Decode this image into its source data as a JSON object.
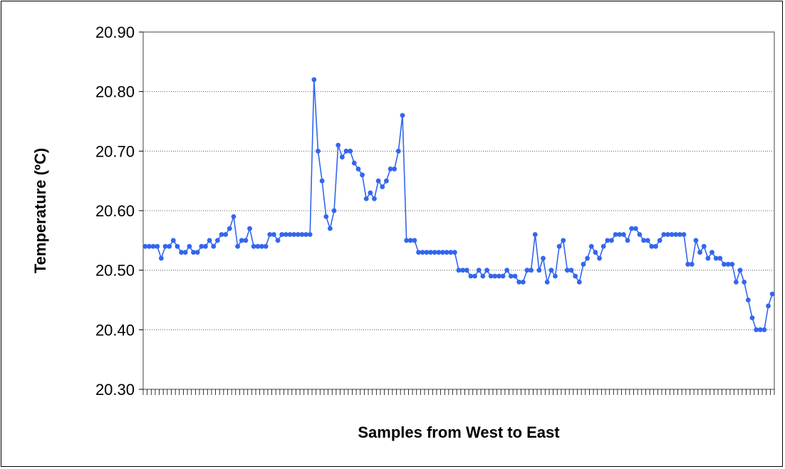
{
  "chart_data": {
    "type": "line",
    "title": "",
    "xlabel": "Samples from West to East",
    "ylabel": "Temperature (ºC)",
    "ylim": [
      20.3,
      20.9
    ],
    "yticks": [
      "20.30",
      "20.40",
      "20.50",
      "20.60",
      "20.70",
      "20.80",
      "20.90"
    ],
    "grid": "horizontal dotted",
    "legend": "none",
    "colors": {
      "series": "#3366ee",
      "grid": "#555555",
      "axis": "#808080"
    },
    "series": [
      {
        "values": [
          20.54,
          20.54,
          20.54,
          20.54,
          20.52,
          20.54,
          20.54,
          20.55,
          20.54,
          20.53,
          20.53,
          20.54,
          20.53,
          20.53,
          20.54,
          20.54,
          20.55,
          20.54,
          20.55,
          20.56,
          20.56,
          20.57,
          20.59,
          20.54,
          20.55,
          20.55,
          20.57,
          20.54,
          20.54,
          20.54,
          20.54,
          20.56,
          20.56,
          20.55,
          20.56,
          20.56,
          20.56,
          20.56,
          20.56,
          20.56,
          20.56,
          20.56,
          20.82,
          20.7,
          20.65,
          20.59,
          20.57,
          20.6,
          20.71,
          20.69,
          20.7,
          20.7,
          20.68,
          20.67,
          20.66,
          20.62,
          20.63,
          20.62,
          20.65,
          20.64,
          20.65,
          20.67,
          20.67,
          20.7,
          20.76,
          20.55,
          20.55,
          20.55,
          20.53,
          20.53,
          20.53,
          20.53,
          20.53,
          20.53,
          20.53,
          20.53,
          20.53,
          20.53,
          20.5,
          20.5,
          20.5,
          20.49,
          20.49,
          20.5,
          20.49,
          20.5,
          20.49,
          20.49,
          20.49,
          20.49,
          20.5,
          20.49,
          20.49,
          20.48,
          20.48,
          20.5,
          20.5,
          20.56,
          20.5,
          20.52,
          20.48,
          20.5,
          20.49,
          20.54,
          20.55,
          20.5,
          20.5,
          20.49,
          20.48,
          20.51,
          20.52,
          20.54,
          20.53,
          20.52,
          20.54,
          20.55,
          20.55,
          20.56,
          20.56,
          20.56,
          20.55,
          20.57,
          20.57,
          20.56,
          20.55,
          20.55,
          20.54,
          20.54,
          20.55,
          20.56,
          20.56,
          20.56,
          20.56,
          20.56,
          20.56,
          20.51,
          20.51,
          20.55,
          20.53,
          20.54,
          20.52,
          20.53,
          20.52,
          20.52,
          20.51,
          20.51,
          20.51,
          20.48,
          20.5,
          20.48,
          20.45,
          20.42,
          20.4,
          20.4,
          20.4,
          20.44,
          20.46
        ]
      }
    ]
  }
}
